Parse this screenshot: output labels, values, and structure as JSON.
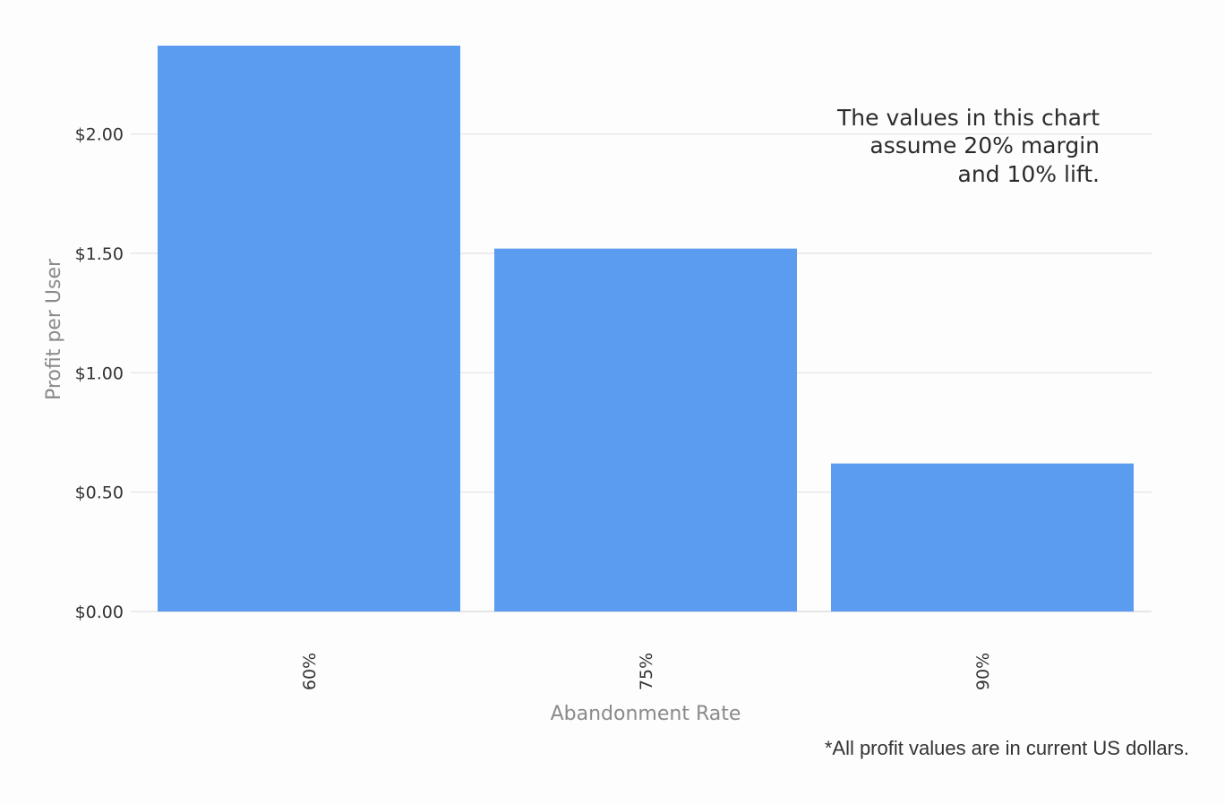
{
  "chart_data": {
    "type": "bar",
    "categories": [
      "60%",
      "75%",
      "90%"
    ],
    "values": [
      2.37,
      1.52,
      0.62
    ],
    "xlabel": "Abandonment Rate",
    "ylabel": "Profit per User",
    "ylim": [
      0,
      2.37
    ],
    "yticks": [
      0,
      0.5,
      1.0,
      1.5,
      2.0
    ],
    "ytick_labels": [
      "$0.00",
      "$0.50",
      "$1.00",
      "$1.50",
      "$2.00"
    ],
    "bar_color": "#5b9bf0",
    "grid": true,
    "annotation": {
      "lines": [
        "The values in this chart",
        "assume 20% margin",
        "and 10% lift."
      ]
    }
  },
  "footnote": "*All profit values are in current US dollars."
}
